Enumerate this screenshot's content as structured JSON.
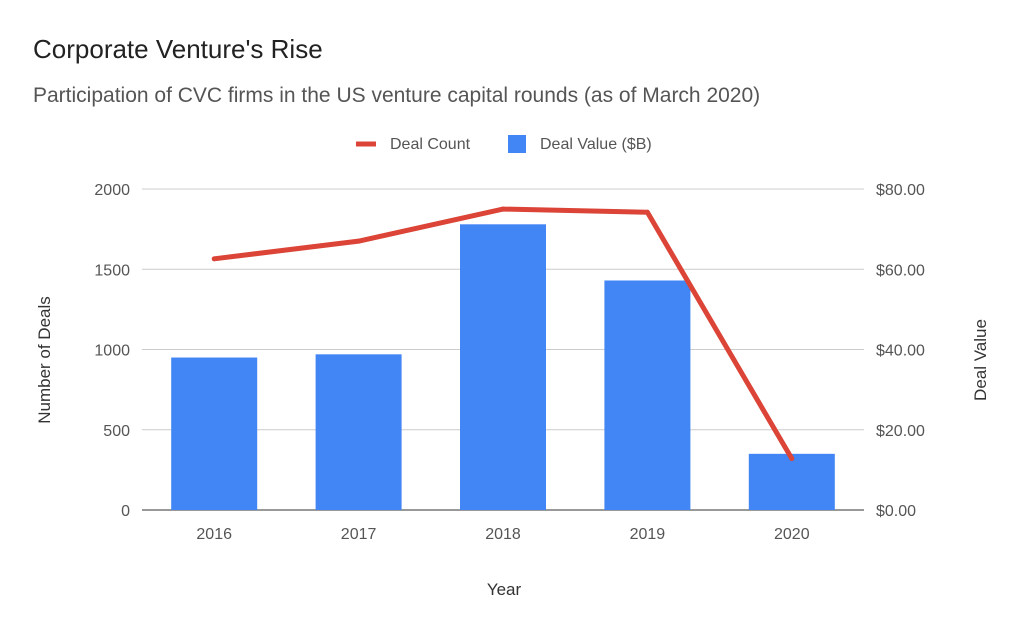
{
  "chart_data": {
    "type": "bar",
    "title": "Corporate Venture's Rise",
    "subtitle": "Participation of CVC firms in the US venture capital rounds (as of March 2020)",
    "xlabel": "Year",
    "ylabel": "Number of Deals",
    "y2label": "Deal Value",
    "categories": [
      "2016",
      "2017",
      "2018",
      "2019",
      "2020"
    ],
    "series": [
      {
        "name": "Deal Value ($B)",
        "type": "bar",
        "axis": "right",
        "color": "#4285f4",
        "values": [
          38.0,
          38.8,
          71.2,
          57.2,
          14.0
        ]
      },
      {
        "name": "Deal Count",
        "type": "line",
        "axis": "left",
        "color": "#db4437",
        "values": [
          1565,
          1675,
          1875,
          1855,
          320
        ]
      }
    ],
    "ylim": [
      0,
      2000
    ],
    "y2lim": [
      0,
      80
    ],
    "yticks": [
      "0",
      "500",
      "1000",
      "1500",
      "2000"
    ],
    "y2ticks": [
      "$0.00",
      "$20.00",
      "$40.00",
      "$60.00",
      "$80.00"
    ],
    "grid": true,
    "legend_position": "top-center"
  }
}
